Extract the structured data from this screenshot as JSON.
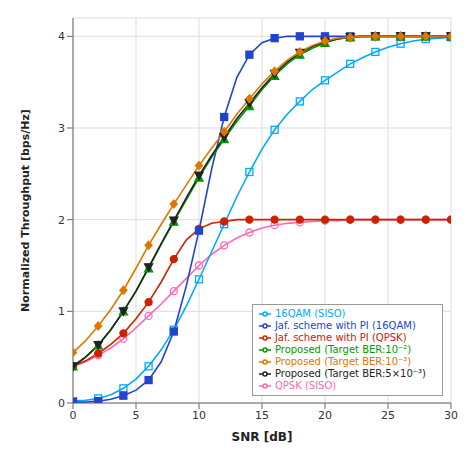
{
  "chart_data": {
    "type": "line",
    "title": "",
    "xlabel": "SNR [dB]",
    "ylabel": "Normalized Throughput [bps/Hz]",
    "xlim": [
      0,
      30
    ],
    "ylim": [
      0,
      4.2
    ],
    "xticks": [
      0,
      5,
      10,
      15,
      20,
      25,
      30
    ],
    "yticks": [
      0,
      1,
      2,
      3,
      4
    ],
    "grid": true,
    "legend": "lower right",
    "x": [
      0,
      1,
      2,
      3,
      4,
      5,
      6,
      7,
      8,
      9,
      10,
      11,
      12,
      13,
      14,
      15,
      16,
      17,
      18,
      19,
      20,
      21,
      22,
      23,
      24,
      25,
      26,
      27,
      28,
      29,
      30
    ],
    "series": [
      {
        "name": "QPSK (SISO)",
        "color": "#ff69b4",
        "marker": "circle-open",
        "values": [
          0.4,
          0.45,
          0.52,
          0.6,
          0.7,
          0.82,
          0.95,
          1.08,
          1.22,
          1.36,
          1.5,
          1.62,
          1.72,
          1.8,
          1.86,
          1.91,
          1.94,
          1.96,
          1.97,
          1.98,
          1.99,
          1.99,
          2.0,
          2.0,
          2.0,
          2.0,
          2.0,
          2.0,
          2.0,
          2.0,
          2.0
        ]
      },
      {
        "name": "16QAM (SISO)",
        "color": "#00aaff",
        "marker": "square-open",
        "values": [
          0.02,
          0.03,
          0.05,
          0.09,
          0.16,
          0.26,
          0.4,
          0.58,
          0.8,
          1.06,
          1.35,
          1.65,
          1.95,
          2.25,
          2.52,
          2.77,
          2.98,
          3.15,
          3.29,
          3.42,
          3.52,
          3.61,
          3.7,
          3.77,
          3.83,
          3.88,
          3.92,
          3.95,
          3.97,
          3.98,
          3.99
        ]
      },
      {
        "name": "Jaf. scheme with PI (QPSK)",
        "color": "#cc2200",
        "marker": "circle",
        "values": [
          0.4,
          0.46,
          0.54,
          0.64,
          0.76,
          0.92,
          1.1,
          1.32,
          1.57,
          1.78,
          1.9,
          1.96,
          1.98,
          2.0,
          2.0,
          2.0,
          2.0,
          2.0,
          2.0,
          2.0,
          2.0,
          2.0,
          2.0,
          2.0,
          2.0,
          2.0,
          2.0,
          2.0,
          2.0,
          2.0,
          2.0
        ]
      },
      {
        "name": "Jaf. scheme with PI (16QAM)",
        "color": "#2244cc",
        "marker": "square",
        "values": [
          0.01,
          0.01,
          0.02,
          0.04,
          0.08,
          0.14,
          0.25,
          0.45,
          0.78,
          1.28,
          1.88,
          2.55,
          3.12,
          3.55,
          3.8,
          3.93,
          3.98,
          4.0,
          4.0,
          4.0,
          4.0,
          4.0,
          4.0,
          4.0,
          4.0,
          4.0,
          4.0,
          4.0,
          4.0,
          4.0,
          4.0
        ]
      },
      {
        "name": "Proposed (Target BER:10⁻²)",
        "color": "#009900",
        "marker": "triangle-up",
        "values": [
          0.4,
          0.5,
          0.63,
          0.8,
          1.0,
          1.22,
          1.47,
          1.73,
          1.98,
          2.22,
          2.46,
          2.68,
          2.88,
          3.07,
          3.24,
          3.42,
          3.57,
          3.7,
          3.8,
          3.87,
          3.93,
          3.97,
          3.99,
          4.0,
          4.0,
          4.0,
          4.0,
          4.0,
          4.0,
          4.0,
          4.0
        ]
      },
      {
        "name": "Proposed (Target BER:5×10⁻³)",
        "color": "#222222",
        "marker": "triangle-down",
        "values": [
          0.4,
          0.5,
          0.63,
          0.8,
          1.0,
          1.22,
          1.48,
          1.74,
          1.99,
          2.24,
          2.48,
          2.7,
          2.9,
          3.1,
          3.27,
          3.44,
          3.59,
          3.72,
          3.82,
          3.89,
          3.94,
          3.97,
          3.99,
          4.0,
          4.0,
          4.0,
          4.0,
          4.0,
          4.0,
          4.0,
          4.0
        ]
      },
      {
        "name": "Proposed (Target BER:10⁻³)",
        "color": "#dd7700",
        "marker": "diamond",
        "values": [
          0.55,
          0.68,
          0.84,
          1.02,
          1.23,
          1.47,
          1.72,
          1.95,
          2.17,
          2.38,
          2.59,
          2.78,
          2.96,
          3.15,
          3.32,
          3.48,
          3.62,
          3.74,
          3.83,
          3.9,
          3.95,
          3.98,
          3.99,
          4.0,
          4.0,
          4.0,
          4.0,
          4.0,
          4.0,
          4.0,
          4.0
        ]
      }
    ]
  }
}
